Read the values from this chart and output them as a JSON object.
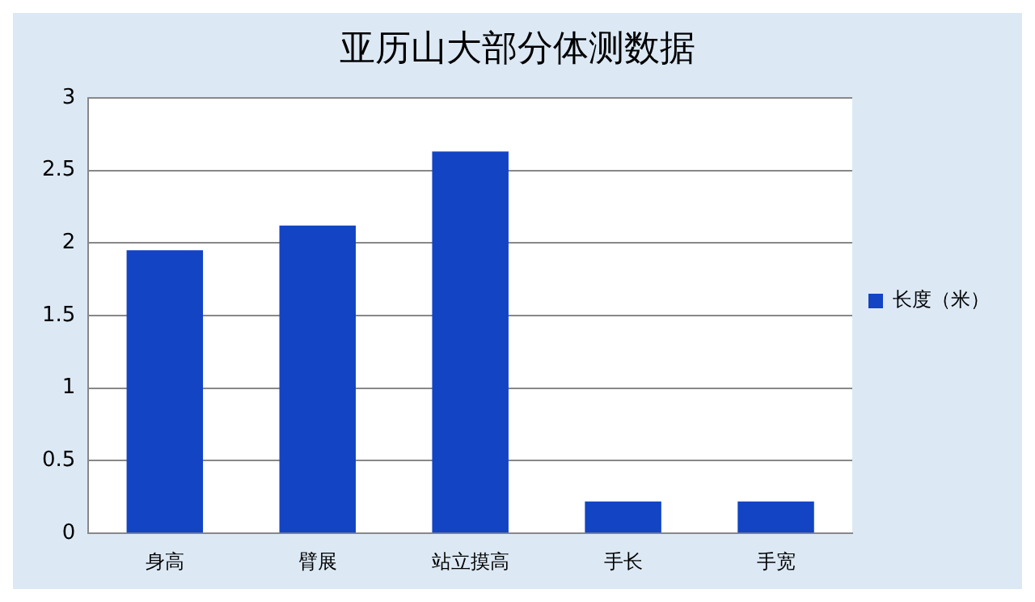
{
  "chart_data": {
    "type": "bar",
    "title": "亚历山大部分体测数据",
    "categories": [
      "身高",
      "臂展",
      "站立摸高",
      "手长",
      "手宽"
    ],
    "series": [
      {
        "name": "长度（米）",
        "color": "#1244c4",
        "values": [
          1.95,
          2.12,
          2.63,
          0.22,
          0.22
        ]
      }
    ],
    "ylim": [
      0,
      3
    ],
    "yticks": [
      0,
      0.5,
      1,
      1.5,
      2,
      2.5,
      3
    ],
    "grid": "y",
    "legend": "right"
  }
}
